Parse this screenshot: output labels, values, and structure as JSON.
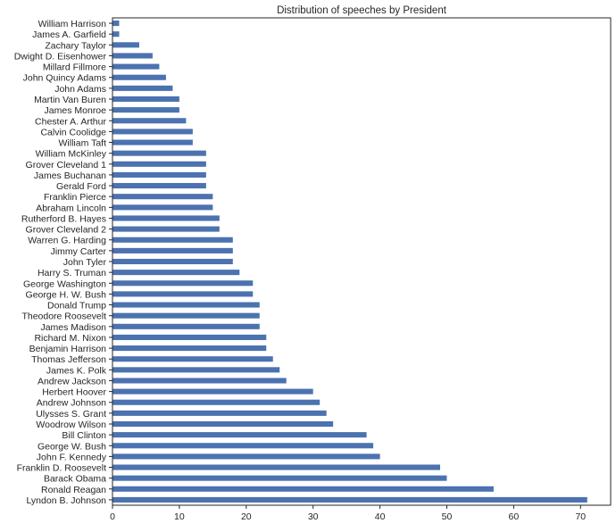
{
  "chart_data": {
    "type": "bar",
    "orientation": "horizontal",
    "title": "Distribution of speeches by President",
    "xlabel": "",
    "ylabel": "",
    "xlim": [
      0,
      74.5
    ],
    "x_ticks": [
      0,
      10,
      20,
      30,
      40,
      50,
      60,
      70
    ],
    "grid": false,
    "bar_color": "#4c72b0",
    "categories": [
      "William Harrison",
      "James A. Garfield",
      "Zachary Taylor",
      "Dwight D. Eisenhower",
      "Millard Fillmore",
      "John Quincy Adams",
      "John Adams",
      "Martin Van Buren",
      "James Monroe",
      "Chester A. Arthur",
      "Calvin Coolidge",
      "William Taft",
      "William McKinley",
      "Grover Cleveland 1",
      "James Buchanan",
      "Gerald Ford",
      "Franklin Pierce",
      "Abraham Lincoln",
      "Rutherford B. Hayes",
      "Grover Cleveland 2",
      "Warren G. Harding",
      "Jimmy Carter",
      "John Tyler",
      "Harry S. Truman",
      "George Washington",
      "George H. W. Bush",
      "Donald Trump",
      "Theodore Roosevelt",
      "James Madison",
      "Richard M. Nixon",
      "Benjamin Harrison",
      "Thomas Jefferson",
      "James K. Polk",
      "Andrew Jackson",
      "Herbert Hoover",
      "Andrew Johnson",
      "Ulysses S. Grant",
      "Woodrow Wilson",
      "Bill Clinton",
      "George W. Bush",
      "John F. Kennedy",
      "Franklin D. Roosevelt",
      "Barack Obama",
      "Ronald Reagan",
      "Lyndon B. Johnson"
    ],
    "values": [
      1,
      1,
      4,
      6,
      7,
      8,
      9,
      10,
      10,
      11,
      12,
      12,
      14,
      14,
      14,
      14,
      15,
      15,
      16,
      16,
      18,
      18,
      18,
      19,
      21,
      21,
      22,
      22,
      22,
      23,
      23,
      24,
      25,
      26,
      30,
      31,
      32,
      33,
      38,
      39,
      40,
      49,
      50,
      57,
      71
    ]
  }
}
